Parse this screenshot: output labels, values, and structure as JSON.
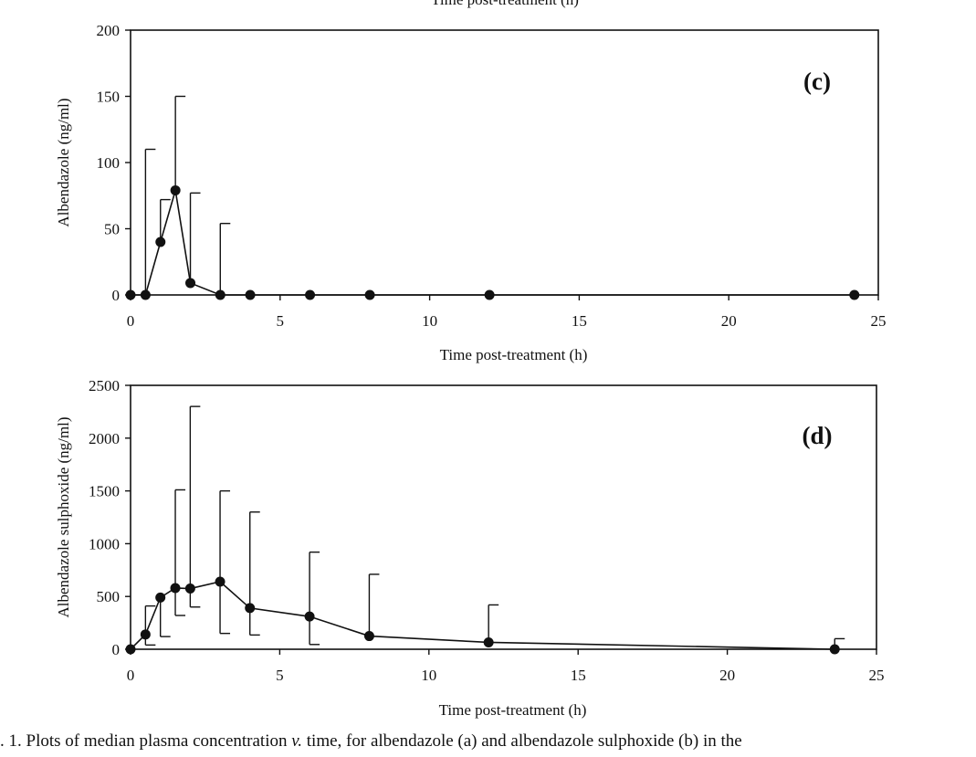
{
  "top_clipped_text": "Time post-treatment (h)",
  "caption": {
    "prefix": ". 1.   Plots of median plasma concentration ",
    "italic": "v.",
    "suffix": " time, for albendazole (a) and albendazole sulphoxide (b) in the"
  },
  "chart_data": [
    {
      "type": "line",
      "panel_label": "(c)",
      "xlabel": "Time post-treatment (h)",
      "ylabel": "Albendazole (ng/ml)",
      "xlim": [
        0,
        25
      ],
      "ylim": [
        0,
        200
      ],
      "xticks": [
        0,
        5,
        10,
        15,
        20,
        25
      ],
      "yticks": [
        0,
        50,
        100,
        150,
        200
      ],
      "grid": false,
      "series": [
        {
          "x": [
            0,
            0.5,
            1,
            1.5,
            2,
            3,
            4,
            6,
            8,
            12,
            24.2
          ],
          "y": [
            0,
            0,
            40,
            79,
            9,
            0,
            0,
            0,
            0,
            0,
            0
          ],
          "err_high": [
            0,
            110,
            72,
            150,
            77,
            54,
            0,
            0,
            0,
            0,
            0
          ],
          "err_low": [
            0,
            0,
            0,
            0,
            0,
            0,
            0,
            0,
            0,
            0,
            0
          ]
        }
      ]
    },
    {
      "type": "line",
      "panel_label": "(d)",
      "xlabel": "Time post-treatment (h)",
      "ylabel": "Albendazole sulphoxide (ng/ml)",
      "xlim": [
        0,
        25
      ],
      "ylim": [
        0,
        2500
      ],
      "xticks": [
        0,
        5,
        10,
        15,
        20,
        25
      ],
      "yticks": [
        0,
        500,
        1000,
        1500,
        2000,
        2500
      ],
      "grid": false,
      "series": [
        {
          "x": [
            0,
            0.5,
            1,
            1.5,
            2,
            3,
            4,
            6,
            8,
            12,
            23.6
          ],
          "y": [
            0,
            140,
            490,
            580,
            575,
            640,
            390,
            310,
            125,
            65,
            0
          ],
          "err_high": [
            0,
            410,
            490,
            1510,
            2300,
            1500,
            1300,
            920,
            710,
            420,
            100
          ],
          "err_low": [
            0,
            40,
            120,
            320,
            400,
            150,
            135,
            45,
            0,
            0,
            0
          ]
        }
      ]
    }
  ]
}
